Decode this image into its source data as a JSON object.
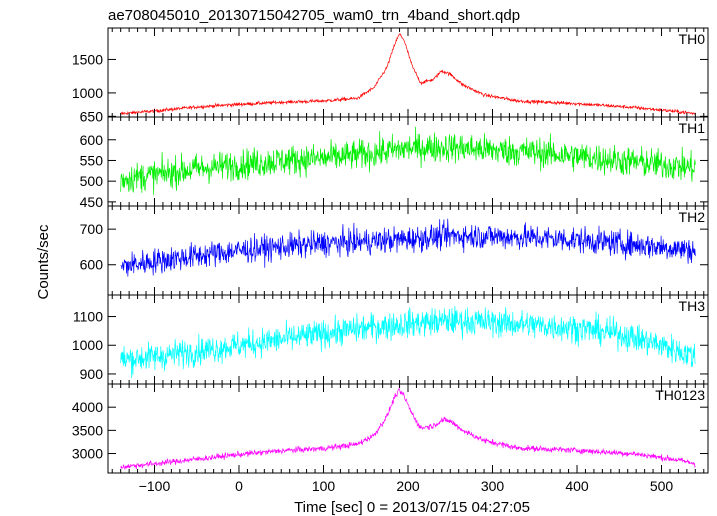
{
  "chart_data": {
    "type": "line",
    "title": "ae708045010_20130715042705_wam0_trn_4band_short.qdp",
    "xlabel": "Time [sec] 0 = 2013/07/15 04:27:05",
    "ylabel": "Counts/sec",
    "xlim": [
      -155,
      555
    ],
    "x_range": [
      -140,
      540
    ],
    "x_ticks": [
      -100,
      0,
      100,
      200,
      300,
      400,
      500
    ],
    "x_tick_labels": [
      "−100",
      "0",
      "100",
      "200",
      "300",
      "400",
      "500"
    ],
    "grid": false,
    "panels": [
      {
        "name": "TH0",
        "color": "#ff0000",
        "ylim": [
          640,
          1970
        ],
        "yticks": [
          650,
          1000,
          1500
        ],
        "noise": 18,
        "profile": [
          [
            -140,
            690
          ],
          [
            -100,
            730
          ],
          [
            -50,
            790
          ],
          [
            0,
            830
          ],
          [
            50,
            860
          ],
          [
            100,
            880
          ],
          [
            140,
            920
          ],
          [
            160,
            1080
          ],
          [
            175,
            1380
          ],
          [
            185,
            1750
          ],
          [
            190,
            1880
          ],
          [
            195,
            1800
          ],
          [
            205,
            1400
          ],
          [
            215,
            1150
          ],
          [
            230,
            1200
          ],
          [
            240,
            1330
          ],
          [
            250,
            1280
          ],
          [
            265,
            1120
          ],
          [
            290,
            970
          ],
          [
            330,
            880
          ],
          [
            400,
            840
          ],
          [
            470,
            780
          ],
          [
            520,
            720
          ],
          [
            540,
            690
          ]
        ]
      },
      {
        "name": "TH1",
        "color": "#00ee00",
        "ylim": [
          440,
          655
        ],
        "yticks": [
          450,
          500,
          550,
          600
        ],
        "noise": 26,
        "profile": [
          [
            -140,
            505
          ],
          [
            -100,
            515
          ],
          [
            -50,
            530
          ],
          [
            0,
            540
          ],
          [
            50,
            550
          ],
          [
            100,
            555
          ],
          [
            150,
            565
          ],
          [
            200,
            580
          ],
          [
            250,
            582
          ],
          [
            300,
            575
          ],
          [
            350,
            570
          ],
          [
            400,
            560
          ],
          [
            450,
            550
          ],
          [
            500,
            540
          ],
          [
            540,
            532
          ]
        ]
      },
      {
        "name": "TH2",
        "color": "#0000ff",
        "ylim": [
          515,
          765
        ],
        "yticks": [
          600,
          700
        ],
        "noise": 26,
        "profile": [
          [
            -140,
            595
          ],
          [
            -100,
            610
          ],
          [
            -50,
            625
          ],
          [
            0,
            640
          ],
          [
            50,
            650
          ],
          [
            100,
            660
          ],
          [
            150,
            665
          ],
          [
            200,
            672
          ],
          [
            250,
            682
          ],
          [
            300,
            680
          ],
          [
            350,
            676
          ],
          [
            400,
            670
          ],
          [
            450,
            660
          ],
          [
            500,
            650
          ],
          [
            540,
            640
          ]
        ]
      },
      {
        "name": "TH3",
        "color": "#00ffff",
        "ylim": [
          865,
          1175
        ],
        "yticks": [
          900,
          1000,
          1100
        ],
        "noise": 35,
        "profile": [
          [
            -140,
            950
          ],
          [
            -100,
            960
          ],
          [
            -50,
            980
          ],
          [
            0,
            1000
          ],
          [
            50,
            1020
          ],
          [
            100,
            1040
          ],
          [
            150,
            1060
          ],
          [
            200,
            1075
          ],
          [
            250,
            1085
          ],
          [
            300,
            1080
          ],
          [
            350,
            1070
          ],
          [
            400,
            1060
          ],
          [
            450,
            1040
          ],
          [
            500,
            1000
          ],
          [
            540,
            960
          ]
        ]
      },
      {
        "name": "TH0123",
        "color": "#ff00ff",
        "ylim": [
          2580,
          4500
        ],
        "yticks": [
          3000,
          3500,
          4000
        ],
        "noise": 45,
        "profile": [
          [
            -140,
            2710
          ],
          [
            -100,
            2780
          ],
          [
            -50,
            2880
          ],
          [
            0,
            2980
          ],
          [
            50,
            3060
          ],
          [
            100,
            3110
          ],
          [
            140,
            3200
          ],
          [
            160,
            3400
          ],
          [
            175,
            3800
          ],
          [
            185,
            4250
          ],
          [
            190,
            4350
          ],
          [
            195,
            4250
          ],
          [
            205,
            3850
          ],
          [
            215,
            3550
          ],
          [
            230,
            3600
          ],
          [
            240,
            3720
          ],
          [
            250,
            3700
          ],
          [
            265,
            3500
          ],
          [
            290,
            3280
          ],
          [
            330,
            3120
          ],
          [
            400,
            3070
          ],
          [
            470,
            2990
          ],
          [
            520,
            2860
          ],
          [
            540,
            2780
          ]
        ]
      }
    ]
  }
}
